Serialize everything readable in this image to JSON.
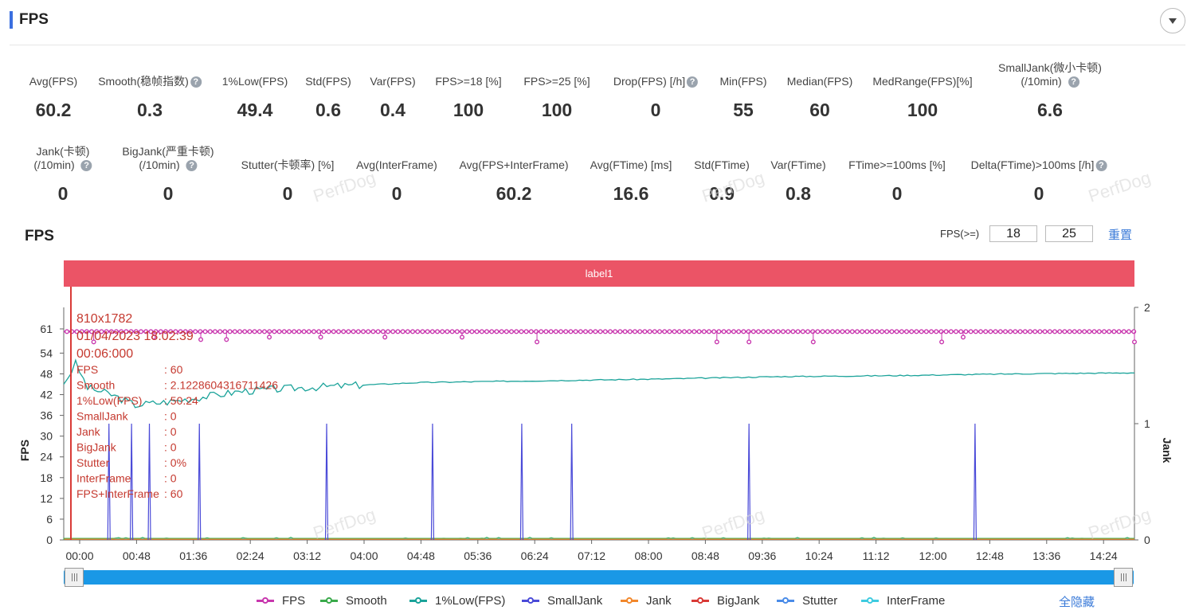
{
  "header": {
    "title": "FPS"
  },
  "metrics_row1": [
    {
      "label": "Avg(FPS)",
      "value": "60.2",
      "help": false
    },
    {
      "label": "Smooth(稳帧指数)",
      "value": "0.3",
      "help": true
    },
    {
      "label": "1%Low(FPS)",
      "value": "49.4",
      "help": false
    },
    {
      "label": "Std(FPS)",
      "value": "0.6",
      "help": false
    },
    {
      "label": "Var(FPS)",
      "value": "0.4",
      "help": false
    },
    {
      "label": "FPS>=18 [%]",
      "value": "100",
      "help": false
    },
    {
      "label": "FPS>=25 [%]",
      "value": "100",
      "help": false
    },
    {
      "label": "Drop(FPS) [/h]",
      "value": "0",
      "help": true
    },
    {
      "label": "Min(FPS)",
      "value": "55",
      "help": false
    },
    {
      "label": "Median(FPS)",
      "value": "60",
      "help": false
    },
    {
      "label": "MedRange(FPS)[%]",
      "value": "100",
      "help": false
    },
    {
      "label": "SmallJank(微小卡顿)",
      "label2": "(/10min)",
      "value": "6.6",
      "help": true
    }
  ],
  "metrics_row2": [
    {
      "label": "Jank(卡顿)",
      "label2": "(/10min)",
      "value": "0",
      "help": true
    },
    {
      "label": "BigJank(严重卡顿)",
      "label2": "(/10min)",
      "value": "0",
      "help": true
    },
    {
      "label": "Stutter(卡顿率) [%]",
      "value": "0",
      "help": false
    },
    {
      "label": "Avg(InterFrame)",
      "value": "0",
      "help": false
    },
    {
      "label": "Avg(FPS+InterFrame)",
      "value": "60.2",
      "help": false
    },
    {
      "label": "Avg(FTime) [ms]",
      "value": "16.6",
      "help": false
    },
    {
      "label": "Std(FTime)",
      "value": "0.9",
      "help": false
    },
    {
      "label": "Var(FTime)",
      "value": "0.8",
      "help": false
    },
    {
      "label": "FTime>=100ms [%]",
      "value": "0",
      "help": false
    },
    {
      "label": "Delta(FTime)>100ms [/h]",
      "value": "0",
      "help": true
    }
  ],
  "chart_section": {
    "title": "FPS",
    "threshold_label": "FPS(>=)",
    "threshold1": "18",
    "threshold2": "25",
    "reset_label": "重置",
    "band_label": "label1",
    "hide_all_label": "全隐藏",
    "watermark": "PerfDog"
  },
  "chart_data": {
    "type": "line",
    "ylabel": "FPS",
    "y2label": "Jank",
    "yticks": [
      0,
      6,
      12,
      18,
      24,
      30,
      36,
      42,
      48,
      54,
      61
    ],
    "y2ticks": [
      0,
      1,
      2
    ],
    "ylim": [
      0,
      61
    ],
    "y2lim": [
      0,
      2
    ],
    "xlim_seconds": [
      0,
      900
    ],
    "xticks": [
      "00:00",
      "00:48",
      "01:36",
      "02:24",
      "03:12",
      "04:00",
      "04:48",
      "05:36",
      "06:24",
      "07:12",
      "08:00",
      "08:48",
      "09:36",
      "10:24",
      "11:12",
      "12:00",
      "12:48",
      "13:36",
      "14:24"
    ],
    "series": [
      {
        "name": "FPS",
        "color": "#c837ae",
        "base": 60,
        "dips_at_seconds": [
          140,
          420,
          640,
          760,
          960,
          1200,
          1500,
          1860,
          2210,
          3050,
          3200,
          3500,
          4100,
          4200,
          5000
        ]
      },
      {
        "name": "Smooth",
        "color": "#3aaa4b"
      },
      {
        "name": "1%Low(FPS)",
        "color": "#1ba39a",
        "points": [
          [
            0,
            45
          ],
          [
            10,
            51
          ],
          [
            20,
            44
          ],
          [
            40,
            42
          ],
          [
            60,
            39
          ],
          [
            90,
            40
          ],
          [
            150,
            43
          ],
          [
            200,
            44
          ],
          [
            300,
            45.5
          ],
          [
            400,
            46
          ],
          [
            500,
            46.5
          ],
          [
            600,
            47.2
          ],
          [
            700,
            47.5
          ],
          [
            800,
            48
          ],
          [
            900,
            48.3
          ]
        ]
      },
      {
        "name": "SmallJank",
        "color": "#4a4ad8",
        "spikes_at_seconds": [
          38,
          57,
          72,
          114,
          221,
          310,
          385,
          427,
          576,
          766
        ]
      },
      {
        "name": "Jank",
        "color": "#f2882c"
      },
      {
        "name": "BigJank",
        "color": "#d93a36"
      },
      {
        "name": "Stutter",
        "color": "#4a8ce8"
      },
      {
        "name": "InterFrame",
        "color": "#3fcbe0"
      }
    ],
    "tooltip": {
      "line1": "810x1782",
      "line2": "01/04/2023 18:02:39",
      "line3": "00:06:000",
      "rows": [
        {
          "k": "FPS",
          "v": ": 60"
        },
        {
          "k": "Smooth",
          "v": ": 2.1228604316711426"
        },
        {
          "k": "1%Low(FPS)",
          "v": ": 50.24"
        },
        {
          "k": "SmallJank",
          "v": ": 0"
        },
        {
          "k": "Jank",
          "v": ": 0"
        },
        {
          "k": "BigJank",
          "v": ": 0"
        },
        {
          "k": "Stutter",
          "v": ": 0%"
        },
        {
          "k": "InterFrame",
          "v": ": 0"
        },
        {
          "k": "FPS+InterFrame",
          "v": ": 60"
        }
      ]
    }
  }
}
